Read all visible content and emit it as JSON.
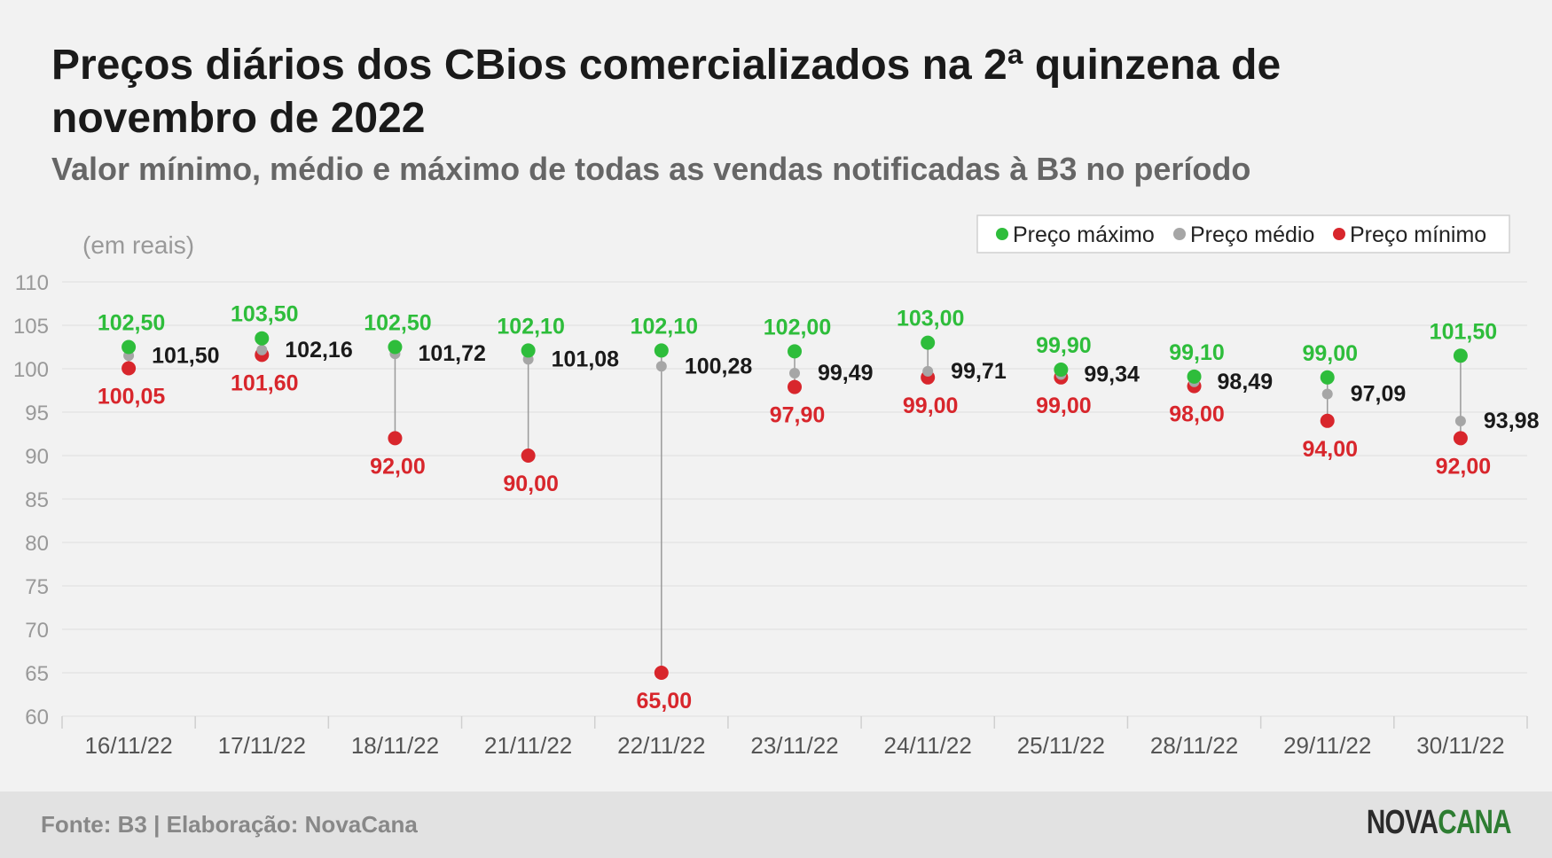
{
  "header": {
    "title": "Preços diários dos CBios comercializados na 2ª quinzena de novembro de 2022",
    "subtitle": "Valor mínimo, médio e máximo de todas as vendas notificadas à B3 no período"
  },
  "footer": {
    "source": "Fonte: B3 | Elaboração: NovaCana",
    "logo_part1": "NOVA",
    "logo_part2": "CANA"
  },
  "colors": {
    "max": "#2ebd3b",
    "avg": "#a6a6a6",
    "min": "#d8262c",
    "max_label": "#2ebd3b",
    "avg_label": "#1a1a1a",
    "min_label": "#d8262c",
    "grid": "#e4e4e4",
    "axis_text": "#999999",
    "background": "#f2f2f2"
  },
  "chart_data": {
    "type": "scatter",
    "unit_label": "(em reais)",
    "categories": [
      "16/11/22",
      "17/11/22",
      "18/11/22",
      "21/11/22",
      "22/11/22",
      "23/11/22",
      "24/11/22",
      "25/11/22",
      "28/11/22",
      "29/11/22",
      "30/11/22"
    ],
    "series": [
      {
        "name": "Preço máximo",
        "role": "max",
        "values": [
          102.5,
          103.5,
          102.5,
          102.1,
          102.1,
          102.0,
          103.0,
          99.9,
          99.1,
          99.0,
          101.5
        ],
        "labels": [
          "102,50",
          "103,50",
          "102,50",
          "102,10",
          "102,10",
          "102,00",
          "103,00",
          "99,90",
          "99,10",
          "99,00",
          "101,50"
        ]
      },
      {
        "name": "Preço médio",
        "role": "avg",
        "values": [
          101.5,
          102.16,
          101.72,
          101.08,
          100.28,
          99.49,
          99.71,
          99.34,
          98.49,
          97.09,
          93.98
        ],
        "labels": [
          "101,50",
          "102,16",
          "101,72",
          "101,08",
          "100,28",
          "99,49",
          "99,71",
          "99,34",
          "98,49",
          "97,09",
          "93,98"
        ]
      },
      {
        "name": "Preço mínimo",
        "role": "min",
        "values": [
          100.05,
          101.6,
          92.0,
          90.0,
          65.0,
          97.9,
          99.0,
          99.0,
          98.0,
          94.0,
          92.0
        ],
        "labels": [
          "100,05",
          "101,60",
          "92,00",
          "90,00",
          "65,00",
          "97,90",
          "99,00",
          "99,00",
          "98,00",
          "94,00",
          "92,00"
        ]
      }
    ],
    "ylim": [
      60,
      110
    ],
    "yticks": [
      60,
      65,
      70,
      75,
      80,
      85,
      90,
      95,
      100,
      105,
      110
    ],
    "grid": true,
    "legend_position": "top-right"
  }
}
